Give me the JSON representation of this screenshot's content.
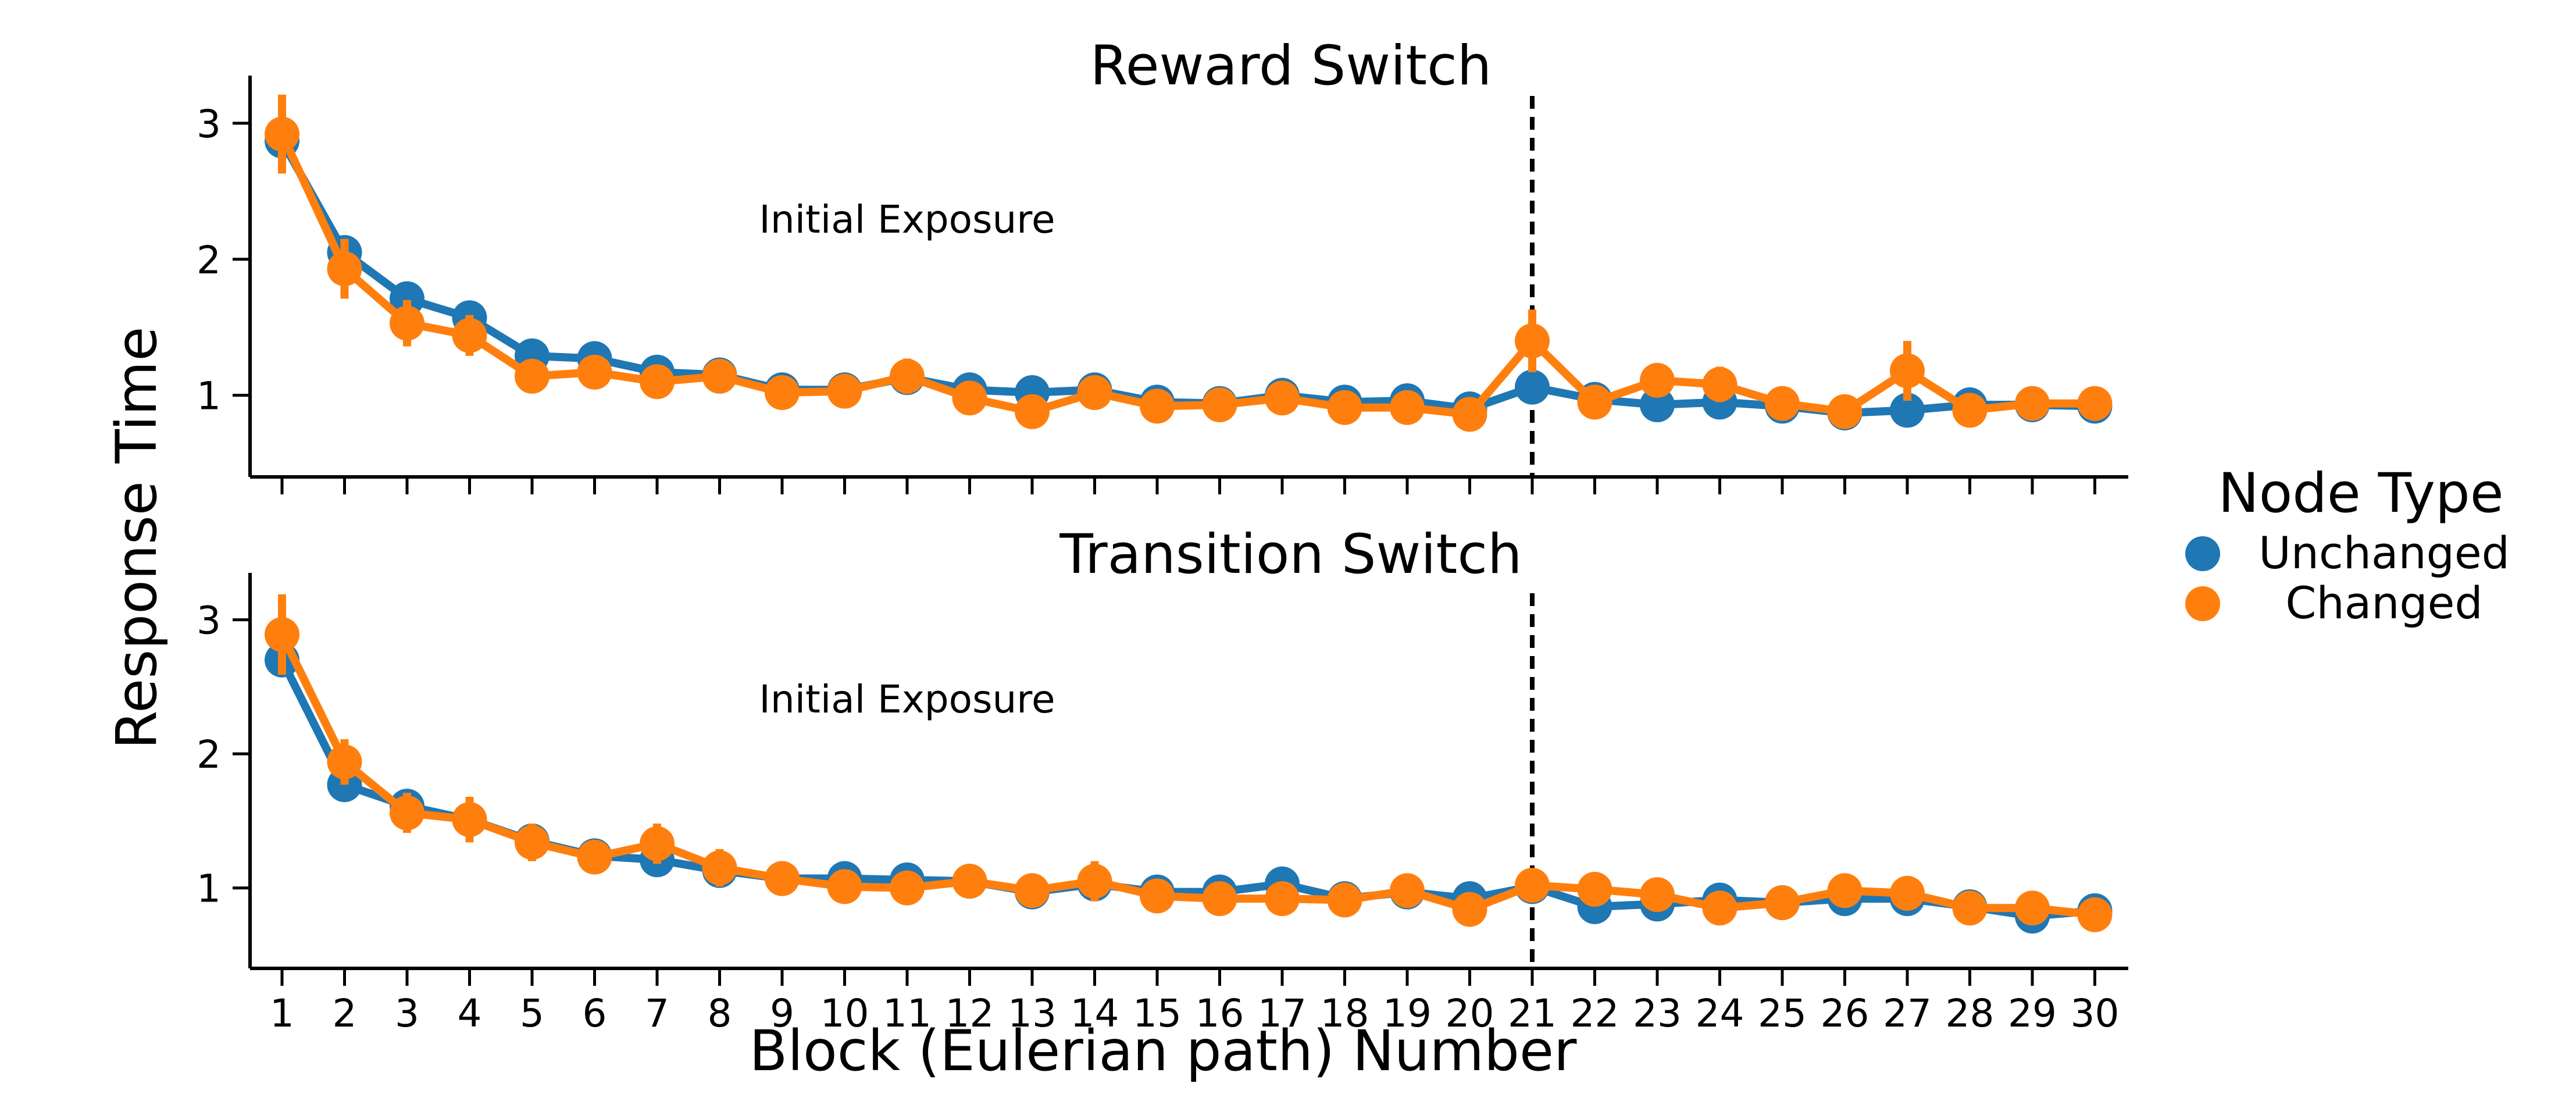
{
  "chart_data": [
    {
      "type": "line",
      "title": "Reward Switch",
      "annotation": "Initial Exposure",
      "ylabel": "Response Time",
      "xlabel": "",
      "x": [
        1,
        2,
        3,
        4,
        5,
        6,
        7,
        8,
        9,
        10,
        11,
        12,
        13,
        14,
        15,
        16,
        17,
        18,
        19,
        20,
        21,
        22,
        23,
        24,
        25,
        26,
        27,
        28,
        29,
        30
      ],
      "ylim": [
        0.4,
        3.35
      ],
      "yticks": [
        1,
        2,
        3
      ],
      "xticklabels_shown": false,
      "vline_x": 21,
      "series": [
        {
          "name": "Unchanged",
          "color": "#1f77b4",
          "values": [
            2.87,
            2.05,
            1.71,
            1.57,
            1.29,
            1.27,
            1.17,
            1.15,
            1.04,
            1.04,
            1.13,
            1.04,
            1.02,
            1.04,
            0.95,
            0.94,
            1.0,
            0.95,
            0.96,
            0.9,
            1.06,
            0.97,
            0.93,
            0.95,
            0.92,
            0.87,
            0.89,
            0.93,
            0.93,
            0.92
          ],
          "errors": [
            0.1,
            0.1,
            0.08,
            0.09,
            0.06,
            0.06,
            0.05,
            0.05,
            0.05,
            0.05,
            0.05,
            0.04,
            0.04,
            0.04,
            0.04,
            0.04,
            0.05,
            0.04,
            0.04,
            0.04,
            0.04,
            0.04,
            0.04,
            0.04,
            0.04,
            0.04,
            0.04,
            0.04,
            0.04,
            0.04
          ]
        },
        {
          "name": "Changed",
          "color": "#ff7f0e",
          "values": [
            2.92,
            1.93,
            1.53,
            1.44,
            1.14,
            1.17,
            1.1,
            1.14,
            1.02,
            1.03,
            1.14,
            0.98,
            0.88,
            1.02,
            0.92,
            0.93,
            0.98,
            0.91,
            0.91,
            0.86,
            1.4,
            0.95,
            1.11,
            1.08,
            0.94,
            0.88,
            1.18,
            0.89,
            0.94,
            0.94
          ]
        },
        {
          "name": "Changed error",
          "color": "#ff7f0e",
          "values": [
            0.29,
            0.22,
            0.17,
            0.15,
            0.1,
            0.11,
            0.09,
            0.09,
            0.08,
            0.09,
            0.13,
            0.09,
            0.06,
            0.09,
            0.08,
            0.09,
            0.12,
            0.08,
            0.09,
            0.06,
            0.23,
            0.08,
            0.11,
            0.13,
            0.11,
            0.1,
            0.22,
            0.08,
            0.09,
            0.12
          ]
        }
      ]
    },
    {
      "type": "line",
      "title": "Transition Switch",
      "annotation": "Initial Exposure",
      "ylabel": "Response Time",
      "xlabel": "Block (Eulerian path) Number",
      "x": [
        1,
        2,
        3,
        4,
        5,
        6,
        7,
        8,
        9,
        10,
        11,
        12,
        13,
        14,
        15,
        16,
        17,
        18,
        19,
        20,
        21,
        22,
        23,
        24,
        25,
        26,
        27,
        28,
        29,
        30
      ],
      "ylim": [
        0.4,
        3.35
      ],
      "yticks": [
        1,
        2,
        3
      ],
      "xticklabels_shown": true,
      "vline_x": 21,
      "series": [
        {
          "name": "Unchanged",
          "color": "#1f77b4",
          "values": [
            2.7,
            1.77,
            1.61,
            1.51,
            1.35,
            1.24,
            1.21,
            1.13,
            1.07,
            1.07,
            1.06,
            1.05,
            0.97,
            1.03,
            0.97,
            0.97,
            1.03,
            0.92,
            0.97,
            0.92,
            1.01,
            0.86,
            0.88,
            0.91,
            0.89,
            0.92,
            0.92,
            0.86,
            0.79,
            0.83
          ],
          "errors": [
            0.1,
            0.08,
            0.07,
            0.07,
            0.06,
            0.05,
            0.05,
            0.05,
            0.04,
            0.04,
            0.04,
            0.04,
            0.04,
            0.04,
            0.04,
            0.04,
            0.04,
            0.04,
            0.04,
            0.04,
            0.04,
            0.04,
            0.04,
            0.04,
            0.04,
            0.04,
            0.04,
            0.04,
            0.04,
            0.04
          ]
        },
        {
          "name": "Changed",
          "color": "#ff7f0e",
          "values": [
            2.89,
            1.94,
            1.56,
            1.51,
            1.34,
            1.23,
            1.33,
            1.15,
            1.07,
            1.01,
            1.0,
            1.05,
            0.98,
            1.05,
            0.94,
            0.92,
            0.92,
            0.91,
            0.98,
            0.84,
            1.02,
            0.99,
            0.95,
            0.85,
            0.89,
            0.98,
            0.96,
            0.85,
            0.85,
            0.8
          ]
        },
        {
          "name": "Changed error",
          "color": "#ff7f0e",
          "values": [
            0.3,
            0.17,
            0.15,
            0.17,
            0.14,
            0.12,
            0.15,
            0.14,
            0.08,
            0.1,
            0.1,
            0.09,
            0.09,
            0.15,
            0.1,
            0.09,
            0.1,
            0.09,
            0.12,
            0.08,
            0.09,
            0.1,
            0.1,
            0.08,
            0.08,
            0.11,
            0.12,
            0.08,
            0.07,
            0.07
          ]
        }
      ]
    }
  ],
  "legend": {
    "title": "Node Type",
    "entries": [
      {
        "label": "Unchanged",
        "color": "#1f77b4"
      },
      {
        "label": "Changed",
        "color": "#ff7f0e"
      }
    ]
  }
}
